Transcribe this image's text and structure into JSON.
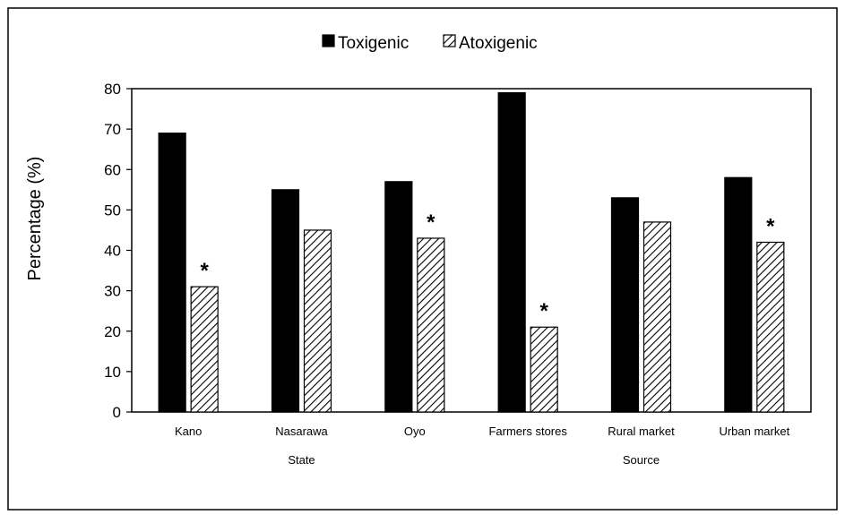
{
  "chart_data": {
    "type": "bar",
    "title": "",
    "ylabel": "Percentage (%)",
    "xlabel": "",
    "ylim": [
      0,
      80
    ],
    "yticks": [
      0,
      10,
      20,
      30,
      40,
      50,
      60,
      70,
      80
    ],
    "categories": [
      "Kano",
      "Nasarawa",
      "Oyo",
      "Farmers stores",
      "Rural market",
      "Urban market"
    ],
    "groups": [
      {
        "label": "State",
        "categories": [
          "Kano",
          "Nasarawa",
          "Oyo"
        ]
      },
      {
        "label": "Source",
        "categories": [
          "Farmers stores",
          "Rural market",
          "Urban market"
        ]
      }
    ],
    "series": [
      {
        "name": "Toxigenic",
        "values": [
          69,
          55,
          57,
          79,
          53,
          58
        ],
        "color": "#000000",
        "pattern": "solid"
      },
      {
        "name": "Atoxigenic",
        "values": [
          31,
          45,
          43,
          21,
          47,
          42
        ],
        "color": "#ffffff",
        "pattern": "diagonal-hatch"
      }
    ],
    "annotations": [
      {
        "category": "Kano",
        "series": "Atoxigenic",
        "text": "*"
      },
      {
        "category": "Oyo",
        "series": "Atoxigenic",
        "text": "*"
      },
      {
        "category": "Farmers stores",
        "series": "Atoxigenic",
        "text": "*"
      },
      {
        "category": "Urban market",
        "series": "Atoxigenic",
        "text": "*"
      }
    ],
    "legend": {
      "position": "top"
    },
    "grid": false
  }
}
